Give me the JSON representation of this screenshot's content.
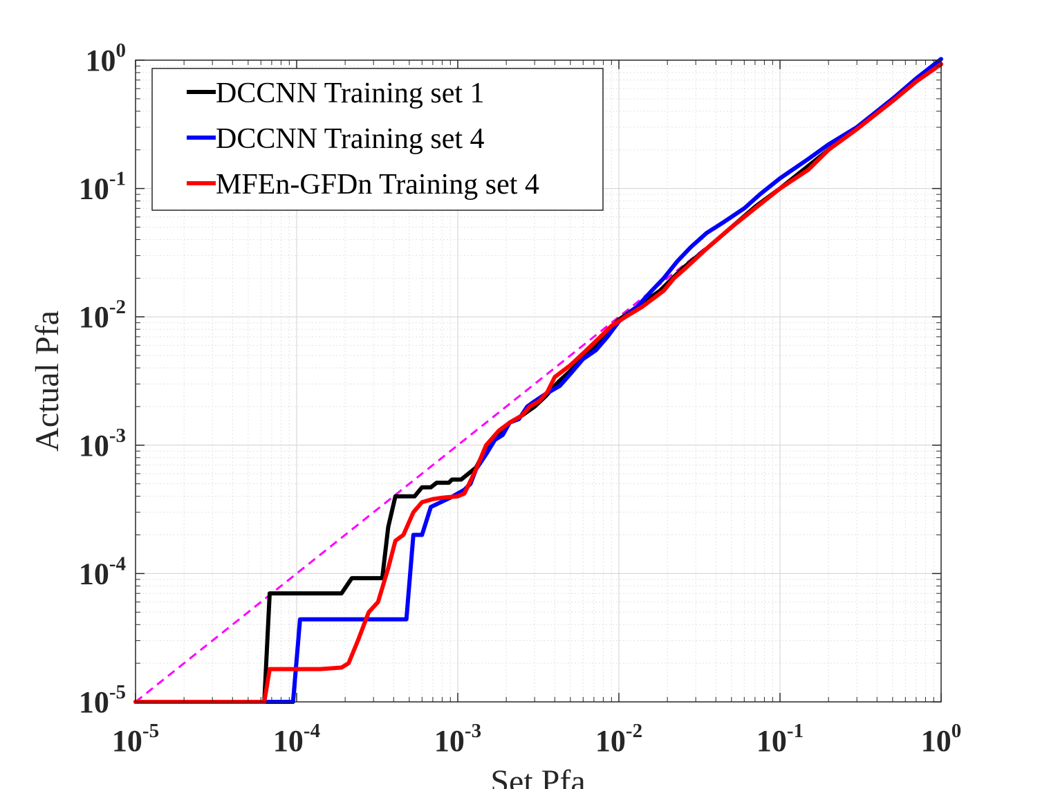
{
  "chart_data": {
    "type": "line",
    "xscale": "log",
    "yscale": "log",
    "xlim": [
      1e-05,
      1
    ],
    "ylim": [
      1e-05,
      1
    ],
    "xlabel": "Set Pfa",
    "ylabel": "Actual Pfa",
    "grid": true,
    "minor_grid": true,
    "legend_position": "top-left",
    "x_ticks": [
      {
        "base": "10",
        "exp": "-5"
      },
      {
        "base": "10",
        "exp": "-4"
      },
      {
        "base": "10",
        "exp": "-3"
      },
      {
        "base": "10",
        "exp": "-2"
      },
      {
        "base": "10",
        "exp": "-1"
      },
      {
        "base": "10",
        "exp": "0"
      }
    ],
    "y_ticks": [
      {
        "base": "10",
        "exp": "-5"
      },
      {
        "base": "10",
        "exp": "-4"
      },
      {
        "base": "10",
        "exp": "-3"
      },
      {
        "base": "10",
        "exp": "-2"
      },
      {
        "base": "10",
        "exp": "-1"
      },
      {
        "base": "10",
        "exp": "0"
      }
    ],
    "series": [
      {
        "name": "DCCNN Training set 1",
        "color": "#000000",
        "in_legend": true,
        "points": [
          [
            1e-05,
            1e-05
          ],
          [
            6.3e-05,
            1e-05
          ],
          [
            6.8e-05,
            7e-05
          ],
          [
            0.00019,
            7e-05
          ],
          [
            0.00022,
            9.2e-05
          ],
          [
            0.00034,
            9.2e-05
          ],
          [
            0.00037,
            0.00023
          ],
          [
            0.00041,
            0.0004
          ],
          [
            0.00054,
            0.0004
          ],
          [
            0.0006,
            0.00047
          ],
          [
            0.00068,
            0.00047
          ],
          [
            0.00074,
            0.00051
          ],
          [
            0.00088,
            0.00051
          ],
          [
            0.00092,
            0.00054
          ],
          [
            0.00105,
            0.00054
          ],
          [
            0.0013,
            0.00067
          ],
          [
            0.0015,
            0.00095
          ],
          [
            0.0018,
            0.00125
          ],
          [
            0.0021,
            0.0015
          ],
          [
            0.0025,
            0.0017
          ],
          [
            0.003,
            0.002
          ],
          [
            0.0035,
            0.0024
          ],
          [
            0.0042,
            0.0031
          ],
          [
            0.005,
            0.0038
          ],
          [
            0.0065,
            0.0052
          ],
          [
            0.008,
            0.0072
          ],
          [
            0.01,
            0.0095
          ],
          [
            0.013,
            0.012
          ],
          [
            0.018,
            0.016
          ],
          [
            0.025,
            0.024
          ],
          [
            0.035,
            0.034
          ],
          [
            0.05,
            0.05
          ],
          [
            0.07,
            0.072
          ],
          [
            0.1,
            0.1
          ],
          [
            0.15,
            0.15
          ],
          [
            0.2,
            0.2
          ],
          [
            0.3,
            0.3
          ],
          [
            0.5,
            0.5
          ],
          [
            0.7,
            0.7
          ],
          [
            1,
            0.93
          ]
        ]
      },
      {
        "name": "DCCNN Training set 4",
        "color": "#0000ff",
        "in_legend": true,
        "points": [
          [
            1e-05,
            1e-05
          ],
          [
            9.5e-05,
            1e-05
          ],
          [
            0.000105,
            4.4e-05
          ],
          [
            0.00048,
            4.4e-05
          ],
          [
            0.00053,
            0.0002
          ],
          [
            0.0006,
            0.0002
          ],
          [
            0.00068,
            0.00033
          ],
          [
            0.00075,
            0.00035
          ],
          [
            0.0009,
            0.00039
          ],
          [
            0.0011,
            0.00045
          ],
          [
            0.0012,
            0.0005
          ],
          [
            0.0013,
            0.00065
          ],
          [
            0.0015,
            0.00085
          ],
          [
            0.0017,
            0.0011
          ],
          [
            0.0019,
            0.0012
          ],
          [
            0.0021,
            0.0015
          ],
          [
            0.0024,
            0.0016
          ],
          [
            0.0027,
            0.002
          ],
          [
            0.003,
            0.0022
          ],
          [
            0.0035,
            0.0025
          ],
          [
            0.0043,
            0.0029
          ],
          [
            0.005,
            0.0036
          ],
          [
            0.006,
            0.0047
          ],
          [
            0.0072,
            0.0055
          ],
          [
            0.0085,
            0.007
          ],
          [
            0.01,
            0.0092
          ],
          [
            0.013,
            0.012
          ],
          [
            0.016,
            0.016
          ],
          [
            0.019,
            0.02
          ],
          [
            0.023,
            0.027
          ],
          [
            0.028,
            0.035
          ],
          [
            0.035,
            0.045
          ],
          [
            0.045,
            0.055
          ],
          [
            0.06,
            0.07
          ],
          [
            0.075,
            0.09
          ],
          [
            0.1,
            0.12
          ],
          [
            0.15,
            0.17
          ],
          [
            0.2,
            0.22
          ],
          [
            0.3,
            0.3
          ],
          [
            0.5,
            0.5
          ],
          [
            0.7,
            0.72
          ],
          [
            1,
            1.02
          ]
        ]
      },
      {
        "name": "MFEn-GFDn Training set 4",
        "color": "#ff0000",
        "in_legend": true,
        "points": [
          [
            1e-05,
            1e-05
          ],
          [
            6.3e-05,
            1e-05
          ],
          [
            6.8e-05,
            1.8e-05
          ],
          [
            0.00014,
            1.8e-05
          ],
          [
            0.00019,
            1.85e-05
          ],
          [
            0.00021,
            2e-05
          ],
          [
            0.00024,
            3e-05
          ],
          [
            0.00028,
            5e-05
          ],
          [
            0.00032,
            6e-05
          ],
          [
            0.00037,
            0.00011
          ],
          [
            0.00041,
            0.00018
          ],
          [
            0.00046,
            0.0002
          ],
          [
            0.00053,
            0.0003
          ],
          [
            0.0006,
            0.00036
          ],
          [
            0.0007,
            0.00038
          ],
          [
            0.0008,
            0.00039
          ],
          [
            0.001,
            0.0004
          ],
          [
            0.0011,
            0.00042
          ],
          [
            0.0013,
            0.00065
          ],
          [
            0.0015,
            0.001
          ],
          [
            0.0018,
            0.0013
          ],
          [
            0.0021,
            0.0015
          ],
          [
            0.0025,
            0.0017
          ],
          [
            0.0028,
            0.002
          ],
          [
            0.0032,
            0.0022
          ],
          [
            0.0036,
            0.0026
          ],
          [
            0.004,
            0.0034
          ],
          [
            0.005,
            0.0042
          ],
          [
            0.006,
            0.0052
          ],
          [
            0.0075,
            0.0068
          ],
          [
            0.009,
            0.0085
          ],
          [
            0.011,
            0.01
          ],
          [
            0.014,
            0.012
          ],
          [
            0.019,
            0.016
          ],
          [
            0.022,
            0.02
          ],
          [
            0.026,
            0.024
          ],
          [
            0.035,
            0.034
          ],
          [
            0.05,
            0.05
          ],
          [
            0.07,
            0.07
          ],
          [
            0.1,
            0.1
          ],
          [
            0.15,
            0.14
          ],
          [
            0.2,
            0.2
          ],
          [
            0.3,
            0.29
          ],
          [
            0.5,
            0.48
          ],
          [
            0.7,
            0.68
          ],
          [
            1,
            0.93
          ]
        ]
      },
      {
        "color": "#ff00ff",
        "dashed": true,
        "in_legend": false,
        "points": [
          [
            1e-05,
            1e-05
          ],
          [
            1,
            1
          ]
        ]
      }
    ]
  }
}
